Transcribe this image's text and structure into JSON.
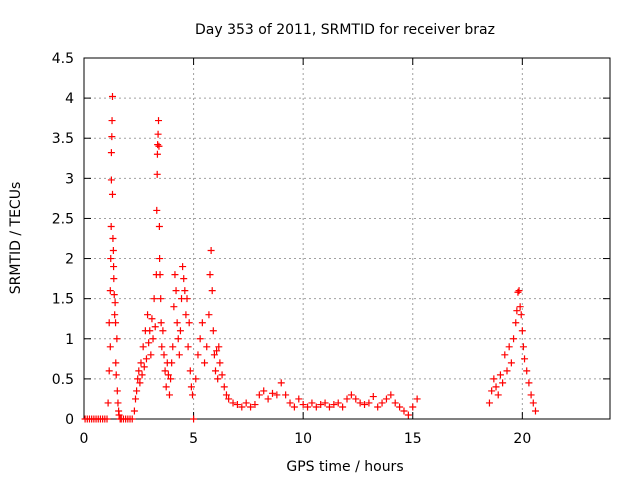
{
  "chart_data": {
    "type": "scatter",
    "title": "Day 353 of 2011, SRMTID for receiver braz",
    "xlabel": "GPS time / hours",
    "ylabel": "SRMTID / TECUs",
    "xlim": [
      0,
      24
    ],
    "ylim": [
      0,
      4.5
    ],
    "xticks": [
      "0",
      "5",
      "10",
      "15",
      "20"
    ],
    "yticks": [
      "0",
      "0.5",
      "1",
      "1.5",
      "2",
      "2.5",
      "3",
      "3.5",
      "4",
      "4.5"
    ],
    "grid": true,
    "marker": "+",
    "color": "#ff0000",
    "x": [
      0.05,
      0.15,
      0.25,
      0.35,
      0.45,
      0.55,
      0.65,
      0.75,
      0.85,
      0.95,
      1.05,
      1.1,
      1.15,
      1.15,
      1.2,
      1.2,
      1.22,
      1.24,
      1.25,
      1.25,
      1.27,
      1.28,
      1.3,
      1.3,
      1.32,
      1.34,
      1.35,
      1.36,
      1.38,
      1.4,
      1.42,
      1.44,
      1.45,
      1.47,
      1.5,
      1.52,
      1.55,
      1.58,
      1.6,
      1.65,
      1.7,
      1.8,
      1.9,
      2.0,
      2.1,
      2.2,
      2.3,
      2.35,
      2.4,
      2.45,
      2.5,
      2.55,
      2.6,
      2.65,
      2.7,
      2.75,
      2.8,
      2.85,
      2.9,
      2.95,
      3.0,
      3.05,
      3.1,
      3.15,
      3.2,
      3.25,
      3.3,
      3.32,
      3.34,
      3.35,
      3.36,
      3.38,
      3.4,
      3.42,
      3.44,
      3.45,
      3.47,
      3.5,
      3.52,
      3.55,
      3.6,
      3.65,
      3.7,
      3.75,
      3.8,
      3.85,
      3.9,
      3.95,
      4.0,
      4.05,
      4.1,
      4.15,
      4.2,
      4.25,
      4.3,
      4.35,
      4.4,
      4.45,
      4.5,
      4.55,
      4.6,
      4.65,
      4.7,
      4.75,
      4.8,
      4.85,
      4.9,
      4.95,
      5.0,
      5.1,
      5.2,
      5.3,
      5.4,
      5.5,
      5.6,
      5.7,
      5.75,
      5.8,
      5.85,
      5.9,
      5.95,
      6.0,
      6.05,
      6.1,
      6.15,
      6.2,
      6.3,
      6.4,
      6.5,
      6.6,
      6.8,
      7.0,
      7.2,
      7.4,
      7.6,
      7.8,
      8.0,
      8.2,
      8.4,
      8.6,
      8.8,
      9.0,
      9.2,
      9.4,
      9.6,
      9.8,
      10.0,
      10.2,
      10.4,
      10.6,
      10.8,
      11.0,
      11.2,
      11.4,
      11.6,
      11.8,
      12.0,
      12.2,
      12.4,
      12.6,
      12.8,
      13.0,
      13.2,
      13.4,
      13.6,
      13.8,
      14.0,
      14.2,
      14.4,
      14.6,
      14.8,
      15.0,
      15.2,
      18.5,
      18.6,
      18.7,
      18.8,
      18.9,
      19.0,
      19.1,
      19.2,
      19.3,
      19.4,
      19.5,
      19.6,
      19.7,
      19.75,
      19.8,
      19.85,
      19.9,
      19.95,
      20.0,
      20.05,
      20.1,
      20.2,
      20.3,
      20.4,
      20.5,
      20.6
    ],
    "y": [
      0.0,
      0.0,
      0.0,
      0.0,
      0.0,
      0.0,
      0.0,
      0.0,
      0.0,
      0.0,
      0.0,
      0.2,
      0.6,
      1.2,
      0.9,
      1.6,
      2.0,
      2.4,
      2.98,
      3.32,
      3.52,
      3.72,
      4.02,
      2.8,
      2.25,
      2.1,
      1.9,
      1.75,
      1.55,
      1.3,
      1.45,
      1.2,
      0.7,
      0.55,
      1.0,
      0.35,
      0.2,
      0.1,
      0.05,
      0.0,
      0.0,
      0.0,
      0.0,
      0.0,
      0.0,
      0.0,
      0.1,
      0.25,
      0.35,
      0.5,
      0.6,
      0.45,
      0.7,
      0.55,
      0.9,
      0.65,
      1.1,
      0.75,
      1.3,
      0.95,
      1.1,
      0.8,
      1.25,
      1.0,
      1.5,
      1.15,
      1.8,
      2.6,
      3.05,
      3.3,
      3.42,
      3.55,
      3.72,
      3.4,
      2.4,
      2.0,
      1.8,
      1.5,
      1.2,
      0.9,
      1.1,
      0.8,
      0.6,
      0.4,
      0.7,
      0.55,
      0.3,
      0.5,
      0.7,
      0.9,
      1.4,
      1.8,
      1.6,
      1.2,
      1.0,
      0.8,
      1.1,
      1.5,
      1.9,
      1.75,
      1.6,
      1.3,
      1.5,
      0.9,
      1.2,
      0.6,
      0.4,
      0.3,
      0.0,
      0.5,
      0.8,
      1.0,
      1.2,
      0.7,
      0.9,
      1.3,
      1.8,
      2.1,
      1.6,
      1.1,
      0.8,
      0.6,
      0.85,
      0.5,
      0.9,
      0.7,
      0.55,
      0.4,
      0.3,
      0.25,
      0.2,
      0.18,
      0.15,
      0.2,
      0.15,
      0.18,
      0.3,
      0.35,
      0.25,
      0.32,
      0.3,
      0.45,
      0.3,
      0.2,
      0.15,
      0.25,
      0.18,
      0.15,
      0.2,
      0.15,
      0.18,
      0.2,
      0.15,
      0.18,
      0.2,
      0.15,
      0.25,
      0.3,
      0.25,
      0.2,
      0.18,
      0.2,
      0.28,
      0.15,
      0.2,
      0.25,
      0.3,
      0.2,
      0.15,
      0.1,
      0.05,
      0.15,
      0.25,
      0.2,
      0.35,
      0.5,
      0.4,
      0.3,
      0.55,
      0.45,
      0.8,
      0.6,
      0.9,
      0.7,
      1.0,
      1.2,
      1.35,
      1.58,
      1.6,
      1.4,
      1.3,
      1.1,
      0.9,
      0.75,
      0.6,
      0.45,
      0.3,
      0.2,
      0.1
    ]
  }
}
